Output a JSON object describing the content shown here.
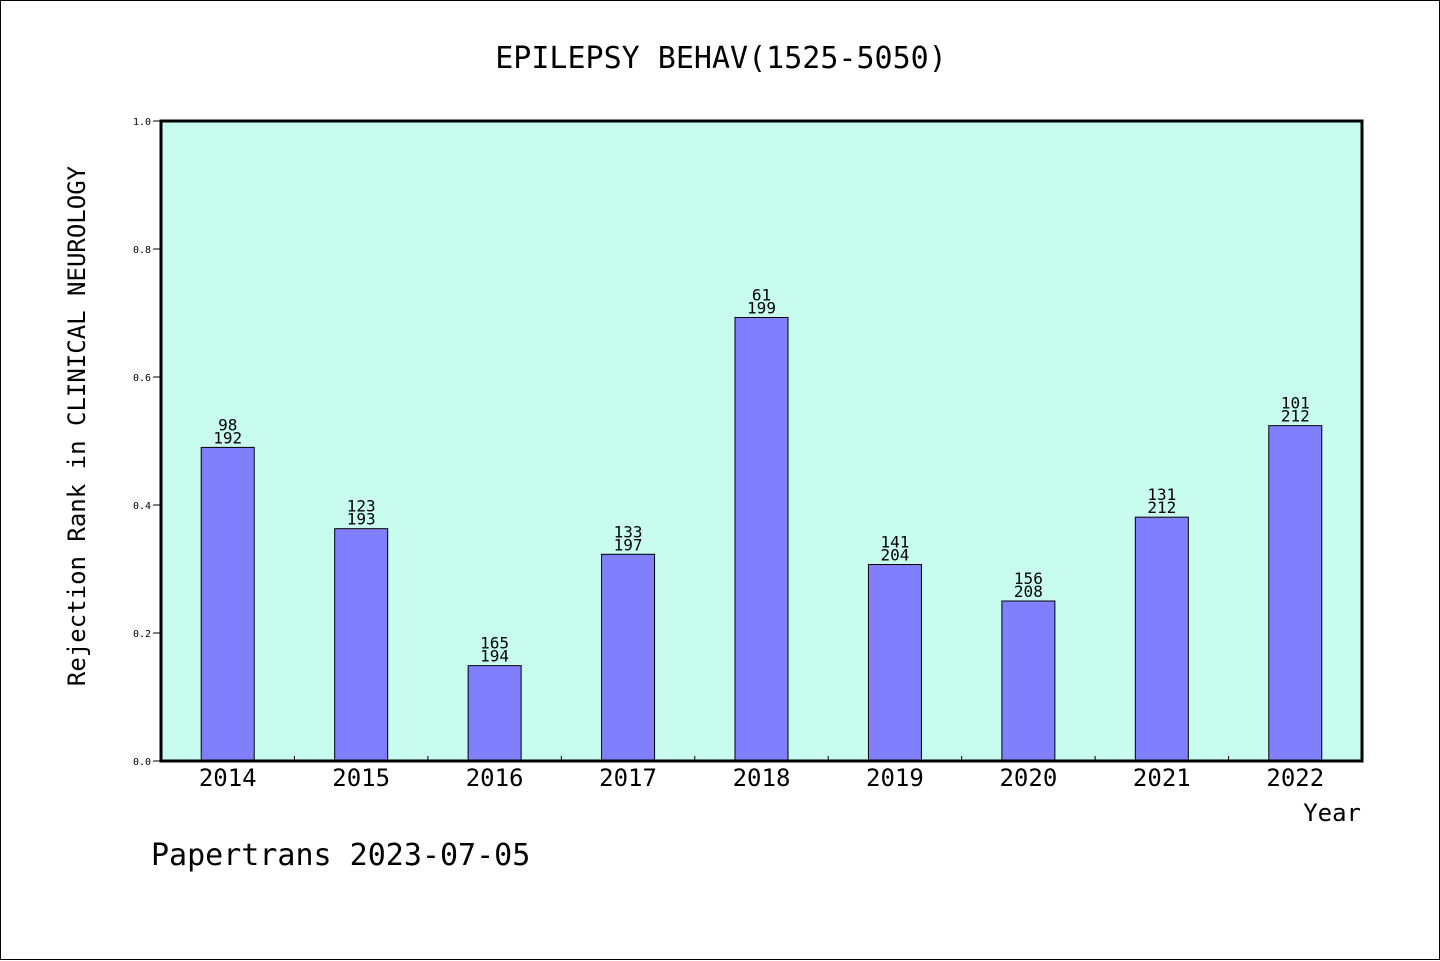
{
  "chart_data": {
    "type": "bar",
    "title": "EPILEPSY BEHAV(1525-5050)",
    "xlabel": "Year",
    "ylabel": "Rejection Rank in CLINICAL NEUROLOGY",
    "ylim": [
      0,
      1.0
    ],
    "yticks": [
      "0.0",
      "0.2",
      "0.4",
      "0.6",
      "0.8",
      "1.0"
    ],
    "categories": [
      "2014",
      "2015",
      "2016",
      "2017",
      "2018",
      "2019",
      "2020",
      "2021",
      "2022"
    ],
    "values": [
      0.49,
      0.363,
      0.149,
      0.323,
      0.693,
      0.307,
      0.25,
      0.381,
      0.524
    ],
    "labels_top": [
      "98",
      "123",
      "165",
      "133",
      "61",
      "141",
      "156",
      "131",
      "101"
    ],
    "labels_bottom": [
      "192",
      "193",
      "194",
      "197",
      "199",
      "204",
      "208",
      "212",
      "212"
    ],
    "grid": false,
    "colors": {
      "plot_background": "#c8fcef",
      "bar": "#8080ff",
      "bar_edge": "#000000"
    }
  },
  "footer": "Papertrans 2023-07-05"
}
